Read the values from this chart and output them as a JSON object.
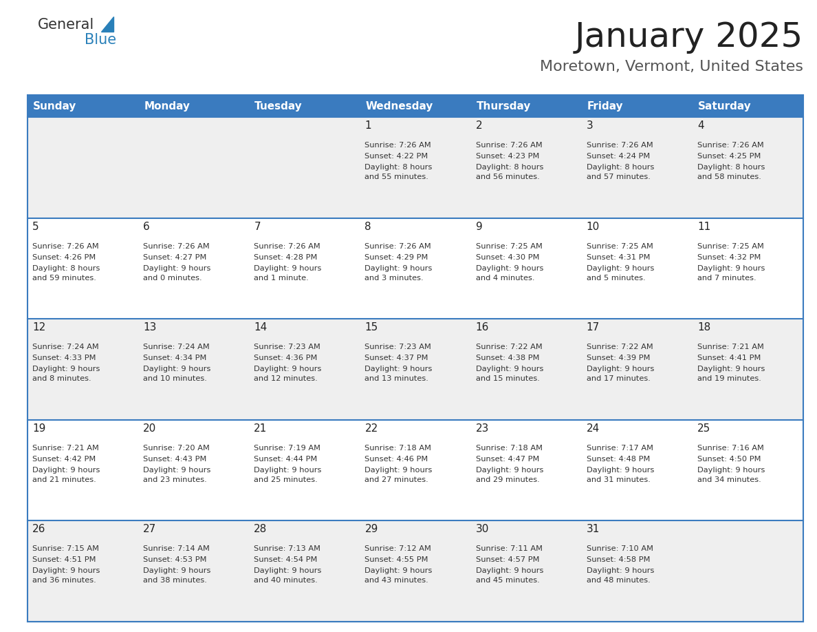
{
  "title": "January 2025",
  "subtitle": "Moretown, Vermont, United States",
  "header_bg": "#3a7bbf",
  "header_text": "#ffffff",
  "row_bg_odd": "#efefef",
  "row_bg_even": "#ffffff",
  "cell_border": "#3a7bbf",
  "day_headers": [
    "Sunday",
    "Monday",
    "Tuesday",
    "Wednesday",
    "Thursday",
    "Friday",
    "Saturday"
  ],
  "days": [
    {
      "day": 1,
      "col": 3,
      "row": 0,
      "sunrise": "7:26 AM",
      "sunset": "4:22 PM",
      "daylight": "8 hours and 55 minutes."
    },
    {
      "day": 2,
      "col": 4,
      "row": 0,
      "sunrise": "7:26 AM",
      "sunset": "4:23 PM",
      "daylight": "8 hours and 56 minutes."
    },
    {
      "day": 3,
      "col": 5,
      "row": 0,
      "sunrise": "7:26 AM",
      "sunset": "4:24 PM",
      "daylight": "8 hours and 57 minutes."
    },
    {
      "day": 4,
      "col": 6,
      "row": 0,
      "sunrise": "7:26 AM",
      "sunset": "4:25 PM",
      "daylight": "8 hours and 58 minutes."
    },
    {
      "day": 5,
      "col": 0,
      "row": 1,
      "sunrise": "7:26 AM",
      "sunset": "4:26 PM",
      "daylight": "8 hours and 59 minutes."
    },
    {
      "day": 6,
      "col": 1,
      "row": 1,
      "sunrise": "7:26 AM",
      "sunset": "4:27 PM",
      "daylight": "9 hours and 0 minutes."
    },
    {
      "day": 7,
      "col": 2,
      "row": 1,
      "sunrise": "7:26 AM",
      "sunset": "4:28 PM",
      "daylight": "9 hours and 1 minute."
    },
    {
      "day": 8,
      "col": 3,
      "row": 1,
      "sunrise": "7:26 AM",
      "sunset": "4:29 PM",
      "daylight": "9 hours and 3 minutes."
    },
    {
      "day": 9,
      "col": 4,
      "row": 1,
      "sunrise": "7:25 AM",
      "sunset": "4:30 PM",
      "daylight": "9 hours and 4 minutes."
    },
    {
      "day": 10,
      "col": 5,
      "row": 1,
      "sunrise": "7:25 AM",
      "sunset": "4:31 PM",
      "daylight": "9 hours and 5 minutes."
    },
    {
      "day": 11,
      "col": 6,
      "row": 1,
      "sunrise": "7:25 AM",
      "sunset": "4:32 PM",
      "daylight": "9 hours and 7 minutes."
    },
    {
      "day": 12,
      "col": 0,
      "row": 2,
      "sunrise": "7:24 AM",
      "sunset": "4:33 PM",
      "daylight": "9 hours and 8 minutes."
    },
    {
      "day": 13,
      "col": 1,
      "row": 2,
      "sunrise": "7:24 AM",
      "sunset": "4:34 PM",
      "daylight": "9 hours and 10 minutes."
    },
    {
      "day": 14,
      "col": 2,
      "row": 2,
      "sunrise": "7:23 AM",
      "sunset": "4:36 PM",
      "daylight": "9 hours and 12 minutes."
    },
    {
      "day": 15,
      "col": 3,
      "row": 2,
      "sunrise": "7:23 AM",
      "sunset": "4:37 PM",
      "daylight": "9 hours and 13 minutes."
    },
    {
      "day": 16,
      "col": 4,
      "row": 2,
      "sunrise": "7:22 AM",
      "sunset": "4:38 PM",
      "daylight": "9 hours and 15 minutes."
    },
    {
      "day": 17,
      "col": 5,
      "row": 2,
      "sunrise": "7:22 AM",
      "sunset": "4:39 PM",
      "daylight": "9 hours and 17 minutes."
    },
    {
      "day": 18,
      "col": 6,
      "row": 2,
      "sunrise": "7:21 AM",
      "sunset": "4:41 PM",
      "daylight": "9 hours and 19 minutes."
    },
    {
      "day": 19,
      "col": 0,
      "row": 3,
      "sunrise": "7:21 AM",
      "sunset": "4:42 PM",
      "daylight": "9 hours and 21 minutes."
    },
    {
      "day": 20,
      "col": 1,
      "row": 3,
      "sunrise": "7:20 AM",
      "sunset": "4:43 PM",
      "daylight": "9 hours and 23 minutes."
    },
    {
      "day": 21,
      "col": 2,
      "row": 3,
      "sunrise": "7:19 AM",
      "sunset": "4:44 PM",
      "daylight": "9 hours and 25 minutes."
    },
    {
      "day": 22,
      "col": 3,
      "row": 3,
      "sunrise": "7:18 AM",
      "sunset": "4:46 PM",
      "daylight": "9 hours and 27 minutes."
    },
    {
      "day": 23,
      "col": 4,
      "row": 3,
      "sunrise": "7:18 AM",
      "sunset": "4:47 PM",
      "daylight": "9 hours and 29 minutes."
    },
    {
      "day": 24,
      "col": 5,
      "row": 3,
      "sunrise": "7:17 AM",
      "sunset": "4:48 PM",
      "daylight": "9 hours and 31 minutes."
    },
    {
      "day": 25,
      "col": 6,
      "row": 3,
      "sunrise": "7:16 AM",
      "sunset": "4:50 PM",
      "daylight": "9 hours and 34 minutes."
    },
    {
      "day": 26,
      "col": 0,
      "row": 4,
      "sunrise": "7:15 AM",
      "sunset": "4:51 PM",
      "daylight": "9 hours and 36 minutes."
    },
    {
      "day": 27,
      "col": 1,
      "row": 4,
      "sunrise": "7:14 AM",
      "sunset": "4:53 PM",
      "daylight": "9 hours and 38 minutes."
    },
    {
      "day": 28,
      "col": 2,
      "row": 4,
      "sunrise": "7:13 AM",
      "sunset": "4:54 PM",
      "daylight": "9 hours and 40 minutes."
    },
    {
      "day": 29,
      "col": 3,
      "row": 4,
      "sunrise": "7:12 AM",
      "sunset": "4:55 PM",
      "daylight": "9 hours and 43 minutes."
    },
    {
      "day": 30,
      "col": 4,
      "row": 4,
      "sunrise": "7:11 AM",
      "sunset": "4:57 PM",
      "daylight": "9 hours and 45 minutes."
    },
    {
      "day": 31,
      "col": 5,
      "row": 4,
      "sunrise": "7:10 AM",
      "sunset": "4:58 PM",
      "daylight": "9 hours and 48 minutes."
    }
  ],
  "num_rows": 5,
  "num_cols": 7,
  "logo_general_color": "#333333",
  "logo_blue_color": "#2980b9",
  "title_color": "#222222",
  "subtitle_color": "#555555",
  "figsize": [
    11.88,
    9.18
  ],
  "dpi": 100
}
